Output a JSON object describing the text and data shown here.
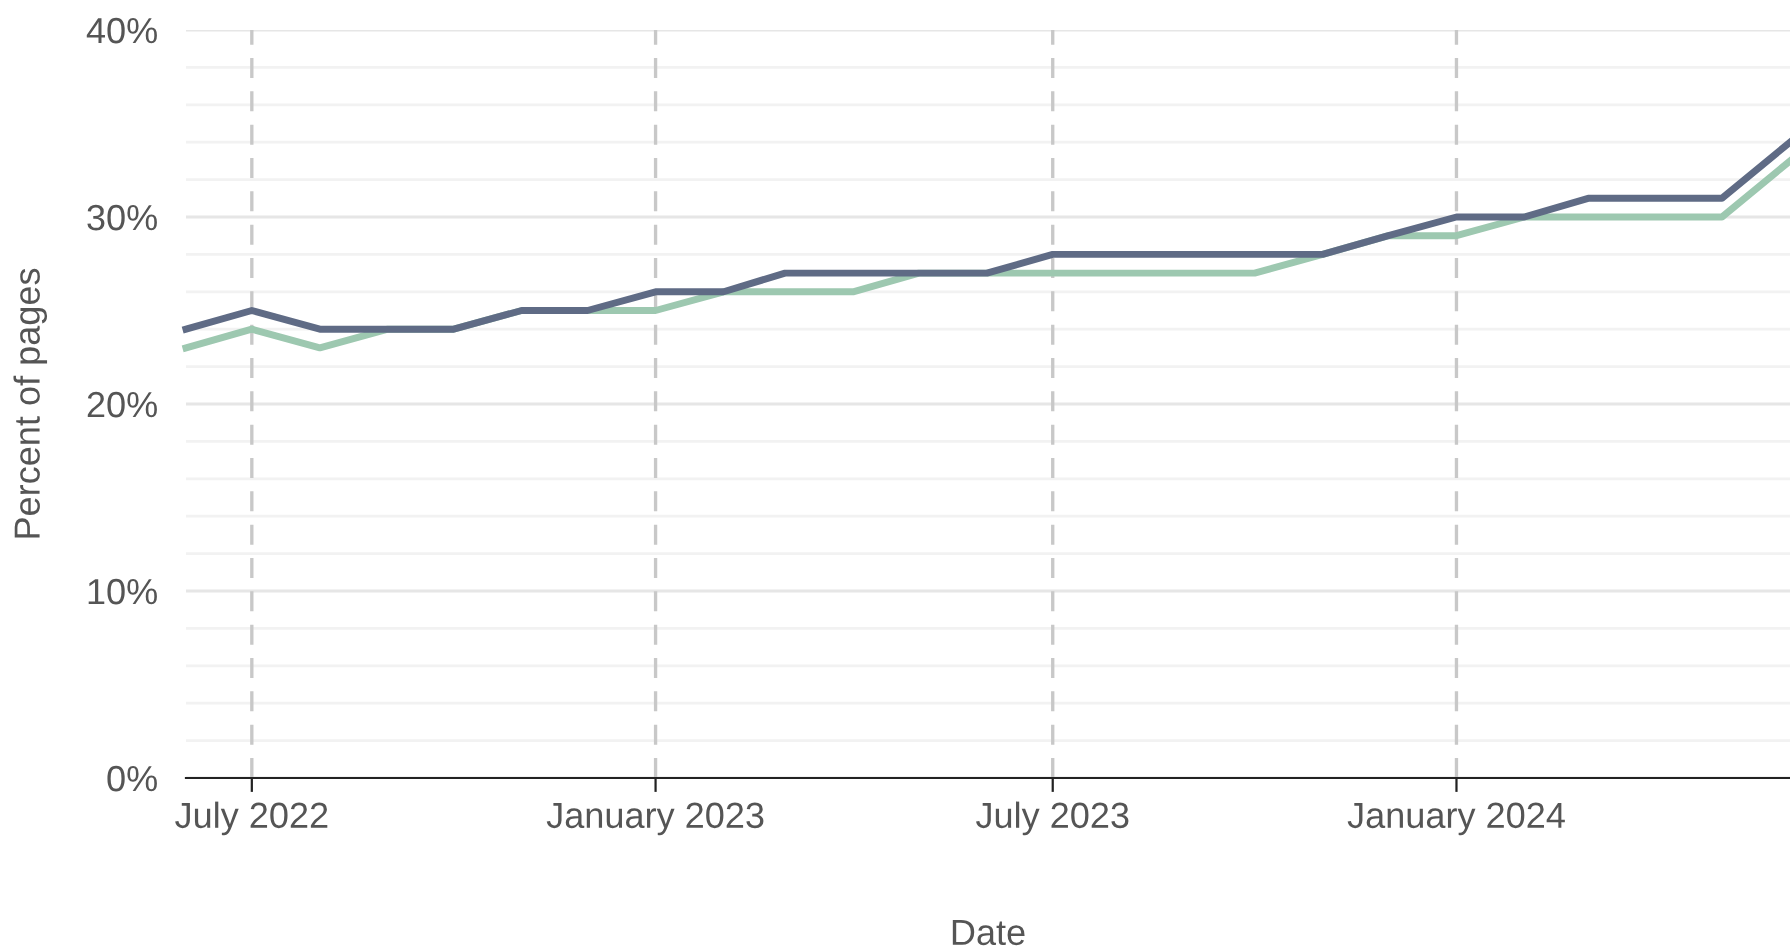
{
  "chart_data": {
    "type": "line",
    "xlabel": "Date",
    "ylabel": "Percent of pages",
    "x": [
      "2022-06",
      "2022-07",
      "2022-08",
      "2022-09",
      "2022-10",
      "2022-11",
      "2022-12",
      "2023-01",
      "2023-02",
      "2023-03",
      "2023-04",
      "2023-05",
      "2023-06",
      "2023-07",
      "2023-08",
      "2023-09",
      "2023-10",
      "2023-11",
      "2023-12",
      "2024-01",
      "2024-02",
      "2024-03",
      "2024-04",
      "2024-05",
      "2024-06"
    ],
    "series": [
      {
        "color": "#9dc8b0",
        "values": [
          23,
          24,
          23,
          24,
          24,
          25,
          25,
          25,
          26,
          26,
          26,
          27,
          27,
          27,
          27,
          27,
          27,
          28,
          29,
          29,
          30,
          30,
          30,
          30,
          33
        ]
      },
      {
        "color": "#5f6b85",
        "values": [
          24,
          25,
          24,
          24,
          24,
          25,
          25,
          26,
          26,
          27,
          27,
          27,
          27,
          28,
          28,
          28,
          28,
          28,
          29,
          30,
          30,
          31,
          31,
          31,
          34
        ]
      }
    ],
    "xlim": [
      "2022-06",
      "2024-06"
    ],
    "xticks": [
      {
        "value": "2022-07",
        "label": "July 2022"
      },
      {
        "value": "2023-01",
        "label": "January 2023"
      },
      {
        "value": "2023-07",
        "label": "July 2023"
      },
      {
        "value": "2024-01",
        "label": "January 2024"
      }
    ],
    "ylim": [
      0,
      40
    ],
    "yticks": [
      {
        "value": 0,
        "label": "0%"
      },
      {
        "value": 2,
        "label": null
      },
      {
        "value": 4,
        "label": null
      },
      {
        "value": 6,
        "label": null
      },
      {
        "value": 8,
        "label": null
      },
      {
        "value": 10,
        "label": "10%"
      },
      {
        "value": 12,
        "label": null
      },
      {
        "value": 14,
        "label": null
      },
      {
        "value": 16,
        "label": null
      },
      {
        "value": 18,
        "label": null
      },
      {
        "value": 20,
        "label": "20%"
      },
      {
        "value": 22,
        "label": null
      },
      {
        "value": 24,
        "label": null
      },
      {
        "value": 26,
        "label": null
      },
      {
        "value": 28,
        "label": null
      },
      {
        "value": 30,
        "label": "30%"
      },
      {
        "value": 32,
        "label": null
      },
      {
        "value": 34,
        "label": null
      },
      {
        "value": 36,
        "label": null
      },
      {
        "value": 38,
        "label": null
      },
      {
        "value": 40,
        "label": "40%"
      }
    ],
    "grid": true,
    "marker": "none",
    "line_style": "solid"
  }
}
